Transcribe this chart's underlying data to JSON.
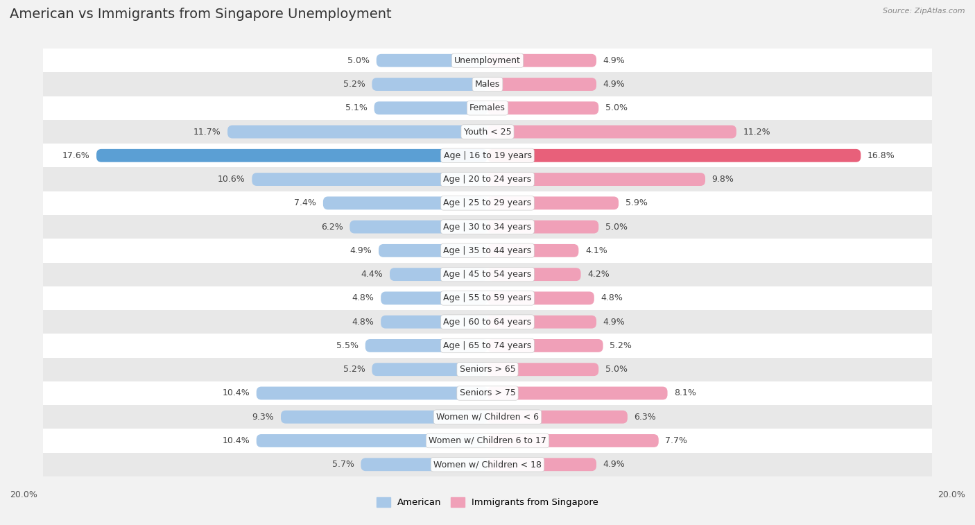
{
  "title": "American vs Immigrants from Singapore Unemployment",
  "source": "Source: ZipAtlas.com",
  "categories": [
    "Unemployment",
    "Males",
    "Females",
    "Youth < 25",
    "Age | 16 to 19 years",
    "Age | 20 to 24 years",
    "Age | 25 to 29 years",
    "Age | 30 to 34 years",
    "Age | 35 to 44 years",
    "Age | 45 to 54 years",
    "Age | 55 to 59 years",
    "Age | 60 to 64 years",
    "Age | 65 to 74 years",
    "Seniors > 65",
    "Seniors > 75",
    "Women w/ Children < 6",
    "Women w/ Children 6 to 17",
    "Women w/ Children < 18"
  ],
  "american": [
    5.0,
    5.2,
    5.1,
    11.7,
    17.6,
    10.6,
    7.4,
    6.2,
    4.9,
    4.4,
    4.8,
    4.8,
    5.5,
    5.2,
    10.4,
    9.3,
    10.4,
    5.7
  ],
  "singapore": [
    4.9,
    4.9,
    5.0,
    11.2,
    16.8,
    9.8,
    5.9,
    5.0,
    4.1,
    4.2,
    4.8,
    4.9,
    5.2,
    5.0,
    8.1,
    6.3,
    7.7,
    4.9
  ],
  "american_color": "#a8c8e8",
  "singapore_color": "#f0a0b8",
  "american_highlight_color": "#5b9fd4",
  "singapore_highlight_color": "#e8607a",
  "background_color": "#f2f2f2",
  "row_color_odd": "#ffffff",
  "row_color_even": "#e8e8e8",
  "max_val": 20.0,
  "legend_american": "American",
  "legend_singapore": "Immigrants from Singapore",
  "title_fontsize": 14,
  "label_fontsize": 9,
  "value_fontsize": 9
}
